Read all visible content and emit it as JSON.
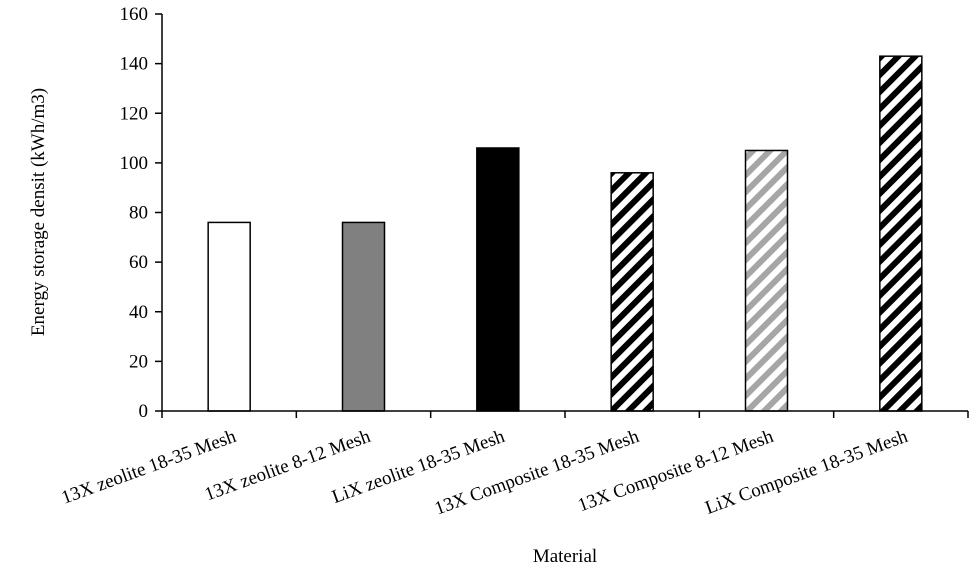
{
  "chart_data": {
    "type": "bar",
    "title": "",
    "xlabel": "Material",
    "ylabel": "Energy storage densit (kWh/m3)",
    "ylim": [
      0,
      160
    ],
    "yticks": [
      0,
      20,
      40,
      60,
      80,
      100,
      120,
      140,
      160
    ],
    "grid": false,
    "legend": "none",
    "categories": [
      "13X zeolite 18-35 Mesh",
      "13X zeolite 8-12 Mesh",
      "LiX zeolite 18-35 Mesh",
      "13X Composite 18-35 Mesh",
      "13X Composite 8-12 Mesh",
      "LiX Composite 18-35 Mesh"
    ],
    "values": [
      76,
      76,
      106,
      96,
      105,
      143
    ],
    "bar_styles": [
      {
        "fill": "solid",
        "color": "#ffffff"
      },
      {
        "fill": "solid",
        "color": "#808080"
      },
      {
        "fill": "solid",
        "color": "#000000"
      },
      {
        "fill": "hatch",
        "color": "#000000"
      },
      {
        "fill": "hatch",
        "color": "#a6a6a6"
      },
      {
        "fill": "hatch",
        "color": "#000000"
      }
    ]
  }
}
